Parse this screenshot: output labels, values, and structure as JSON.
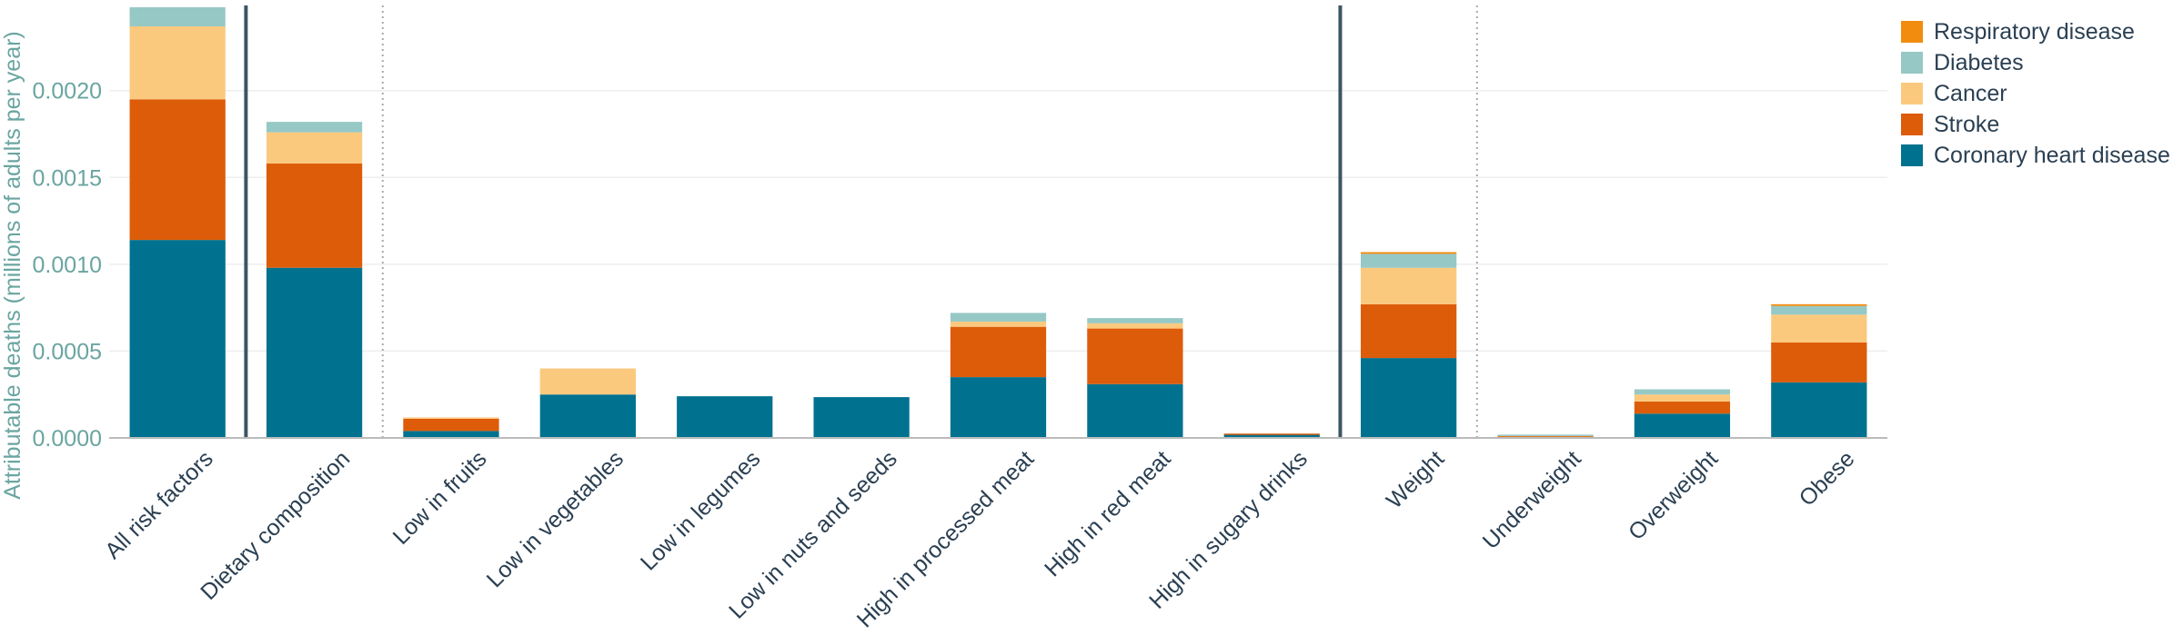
{
  "chart_data": {
    "type": "bar",
    "stacked": true,
    "ylabel": "Attributable deaths (millions of adults per year)",
    "ylim": [
      0,
      0.00248
    ],
    "yticks": [
      "0.0000",
      "0.0005",
      "0.0010",
      "0.0015",
      "0.0020"
    ],
    "grid": true,
    "legend_position": "top-right",
    "categories": [
      "All risk factors",
      "Dietary composition",
      "Low in fruits",
      "Low in vegetables",
      "Low in legumes",
      "Low in nuts and seeds",
      "High in processed meat",
      "High in red meat",
      "High in sugary drinks",
      "Weight",
      "Underweight",
      "Overweight",
      "Obese"
    ],
    "series": [
      {
        "name": "Coronary heart disease",
        "color": "#00728f",
        "values": [
          0.00114,
          0.00098,
          4e-05,
          0.00025,
          0.00024,
          0.000235,
          0.00035,
          0.00031,
          2e-05,
          0.00046,
          5e-06,
          0.00014,
          0.00032
        ]
      },
      {
        "name": "Stroke",
        "color": "#dd5c0a",
        "values": [
          0.00081,
          0.0006,
          7e-05,
          0.0,
          0.0,
          0.0,
          0.00029,
          0.00032,
          5e-06,
          0.00031,
          8e-06,
          7e-05,
          0.00023
        ]
      },
      {
        "name": "Cancer",
        "color": "#fbc97e",
        "values": [
          0.00042,
          0.00018,
          8e-06,
          0.00015,
          0.0,
          0.0,
          3e-05,
          3e-05,
          0.0,
          0.00021,
          4e-06,
          4e-05,
          0.00016
        ]
      },
      {
        "name": "Diabetes",
        "color": "#96c8c6",
        "values": [
          0.00011,
          6e-05,
          0.0,
          0.0,
          0.0,
          0.0,
          5e-05,
          3e-05,
          0.0,
          8e-05,
          2e-06,
          3e-05,
          5e-05
        ]
      },
      {
        "name": "Respiratory disease",
        "color": "#f28c0f",
        "values": [
          0.0,
          0.0,
          0.0,
          0.0,
          0.0,
          0.0,
          0.0,
          0.0,
          0.0,
          1e-05,
          0.0,
          0.0,
          1e-05
        ]
      }
    ],
    "separators": [
      {
        "after_category": 0,
        "style": "solid"
      },
      {
        "after_category": 1,
        "style": "dotted"
      },
      {
        "after_category": 8,
        "style": "solid"
      },
      {
        "after_category": 9,
        "style": "dotted"
      }
    ],
    "colors": {
      "axis_text": "#6aa5a1",
      "category_text": "#2a3f52",
      "grid": "#eeeeee",
      "separator": "#3b5566"
    }
  }
}
